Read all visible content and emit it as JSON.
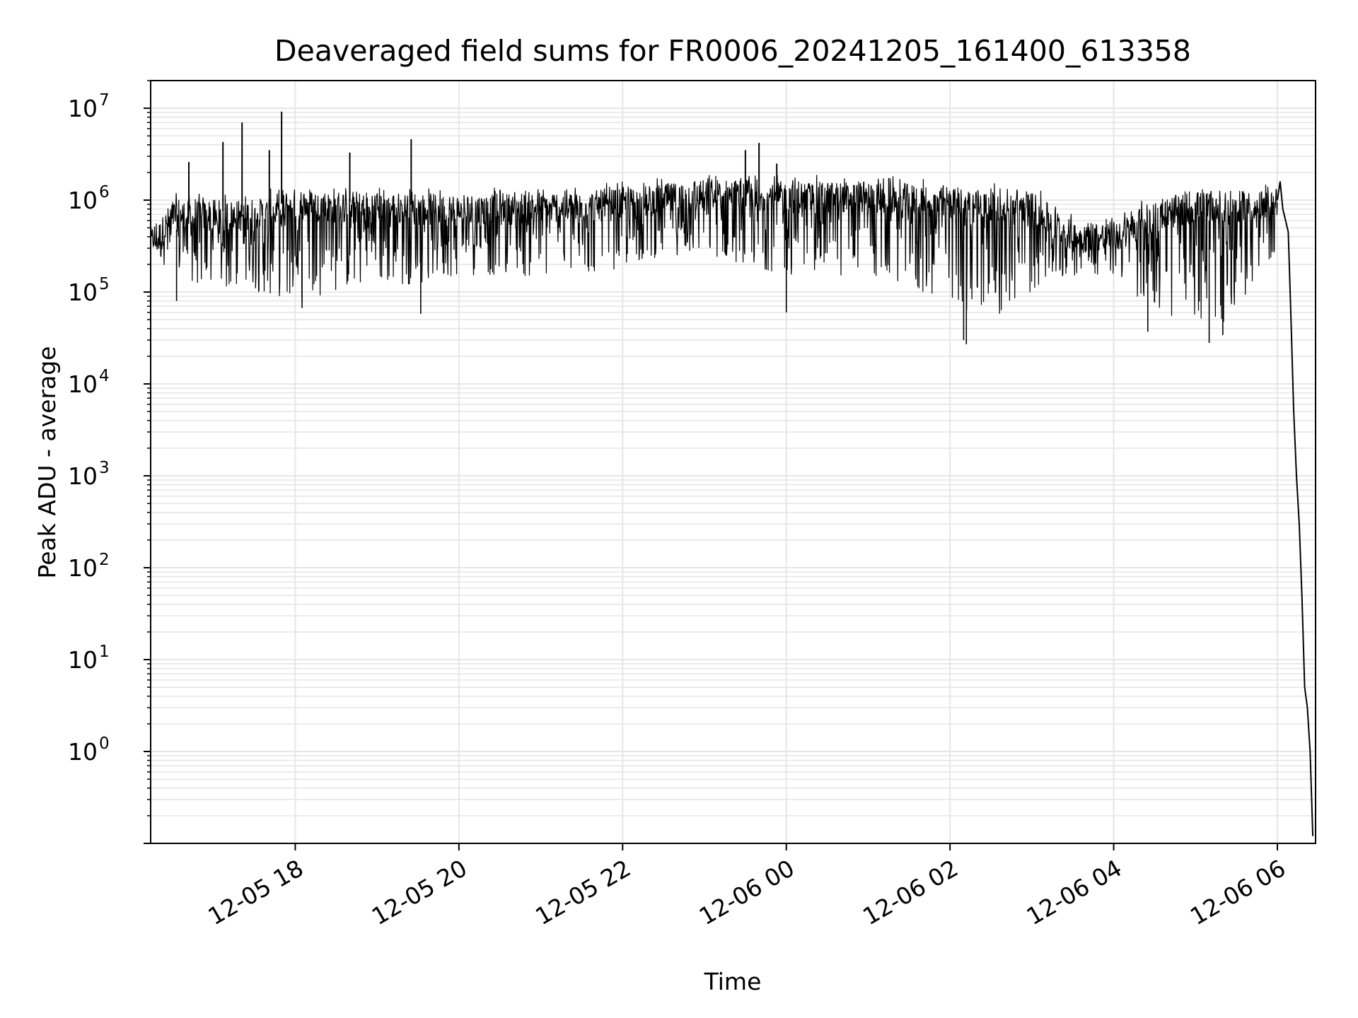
{
  "chart_data": {
    "type": "line",
    "title": "Deaveraged field sums for FR0006_20241205_161400_613358",
    "xlabel": "Time",
    "ylabel": "Peak ADU - average",
    "yscale": "log",
    "ylim": [
      0.1,
      20000000
    ],
    "xlim": [
      "2024-12-05 16:14",
      "2024-12-06 06:28"
    ],
    "grid": true,
    "line_color": "#000000",
    "grid_color": "#e6e6e6",
    "x_ticks": [
      {
        "value": "2024-12-05 18:00",
        "label": "12-05 18"
      },
      {
        "value": "2024-12-05 20:00",
        "label": "12-05 20"
      },
      {
        "value": "2024-12-05 22:00",
        "label": "12-05 22"
      },
      {
        "value": "2024-12-06 00:00",
        "label": "12-06 00"
      },
      {
        "value": "2024-12-06 02:00",
        "label": "12-06 02"
      },
      {
        "value": "2024-12-06 04:00",
        "label": "12-06 04"
      },
      {
        "value": "2024-12-06 06:00",
        "label": "12-06 06"
      }
    ],
    "y_ticks": [
      {
        "value": 1,
        "base": "10",
        "exp": "0"
      },
      {
        "value": 10,
        "base": "10",
        "exp": "1"
      },
      {
        "value": 100,
        "base": "10",
        "exp": "2"
      },
      {
        "value": 1000,
        "base": "10",
        "exp": "3"
      },
      {
        "value": 10000,
        "base": "10",
        "exp": "4"
      },
      {
        "value": 100000,
        "base": "10",
        "exp": "5"
      },
      {
        "value": 1000000,
        "base": "10",
        "exp": "6"
      },
      {
        "value": 10000000,
        "base": "10",
        "exp": "7"
      }
    ],
    "series": [
      {
        "envelope": [
          {
            "x": "2024-12-05 16:14",
            "low": 300000,
            "high": 500000
          },
          {
            "x": "2024-12-05 16:30",
            "low": 150000,
            "high": 1200000
          },
          {
            "x": "2024-12-05 17:00",
            "low": 100000,
            "high": 1200000
          },
          {
            "x": "2024-12-05 17:30",
            "low": 100000,
            "high": 1200000
          },
          {
            "x": "2024-12-05 18:00",
            "low": 80000,
            "high": 1600000
          },
          {
            "x": "2024-12-05 18:30",
            "low": 100000,
            "high": 1500000
          },
          {
            "x": "2024-12-05 19:00",
            "low": 120000,
            "high": 1500000
          },
          {
            "x": "2024-12-05 19:30",
            "low": 120000,
            "high": 1400000
          },
          {
            "x": "2024-12-05 20:00",
            "low": 150000,
            "high": 1400000
          },
          {
            "x": "2024-12-05 20:30",
            "low": 150000,
            "high": 1400000
          },
          {
            "x": "2024-12-05 21:00",
            "low": 140000,
            "high": 1500000
          },
          {
            "x": "2024-12-05 21:30",
            "low": 150000,
            "high": 1500000
          },
          {
            "x": "2024-12-05 22:00",
            "low": 180000,
            "high": 1600000
          },
          {
            "x": "2024-12-05 22:30",
            "low": 250000,
            "high": 1800000
          },
          {
            "x": "2024-12-05 23:00",
            "low": 250000,
            "high": 2000000
          },
          {
            "x": "2024-12-05 23:30",
            "low": 200000,
            "high": 2000000
          },
          {
            "x": "2024-12-06 00:00",
            "low": 150000,
            "high": 1900000
          },
          {
            "x": "2024-12-06 00:30",
            "low": 150000,
            "high": 1900000
          },
          {
            "x": "2024-12-06 01:00",
            "low": 150000,
            "high": 1900000
          },
          {
            "x": "2024-12-06 01:30",
            "low": 100000,
            "high": 1800000
          },
          {
            "x": "2024-12-06 02:00",
            "low": 80000,
            "high": 1600000
          },
          {
            "x": "2024-12-06 02:30",
            "low": 45000,
            "high": 1600000
          },
          {
            "x": "2024-12-06 03:00",
            "low": 100000,
            "high": 1500000
          },
          {
            "x": "2024-12-06 03:30",
            "low": 150000,
            "high": 700000
          },
          {
            "x": "2024-12-06 04:00",
            "low": 150000,
            "high": 700000
          },
          {
            "x": "2024-12-06 04:30",
            "low": 60000,
            "high": 1200000
          },
          {
            "x": "2024-12-06 05:00",
            "low": 40000,
            "high": 1500000
          },
          {
            "x": "2024-12-06 05:30",
            "low": 50000,
            "high": 1500000
          },
          {
            "x": "2024-12-06 06:00",
            "low": 300000,
            "high": 1500000
          }
        ],
        "spikes": [
          {
            "x": "2024-12-05 16:42",
            "y": 2600000
          },
          {
            "x": "2024-12-05 17:07",
            "y": 4300000
          },
          {
            "x": "2024-12-05 17:21",
            "y": 7000000
          },
          {
            "x": "2024-12-05 17:41",
            "y": 3500000
          },
          {
            "x": "2024-12-05 17:50",
            "y": 9200000
          },
          {
            "x": "2024-12-05 18:40",
            "y": 3300000
          },
          {
            "x": "2024-12-05 19:25",
            "y": 4600000
          },
          {
            "x": "2024-12-05 23:30",
            "y": 3500000
          },
          {
            "x": "2024-12-05 23:40",
            "y": 4200000
          },
          {
            "x": "2024-12-05 23:53",
            "y": 2500000
          }
        ],
        "dips": [
          {
            "x": "2024-12-05 16:33",
            "y": 80000
          },
          {
            "x": "2024-12-05 18:05",
            "y": 67000
          },
          {
            "x": "2024-12-05 19:32",
            "y": 58000
          },
          {
            "x": "2024-12-06 00:00",
            "y": 60000
          },
          {
            "x": "2024-12-06 02:10",
            "y": 30000
          },
          {
            "x": "2024-12-06 02:12",
            "y": 27000
          },
          {
            "x": "2024-12-06 04:25",
            "y": 37000
          },
          {
            "x": "2024-12-06 05:10",
            "y": 28000
          },
          {
            "x": "2024-12-06 05:20",
            "y": 34000
          }
        ],
        "tail": [
          {
            "x": "2024-12-06 06:00",
            "y": 1000000
          },
          {
            "x": "2024-12-06 06:02",
            "y": 1600000
          },
          {
            "x": "2024-12-06 06:04",
            "y": 800000
          },
          {
            "x": "2024-12-06 06:06",
            "y": 600000
          },
          {
            "x": "2024-12-06 06:08",
            "y": 450000
          },
          {
            "x": "2024-12-06 06:10",
            "y": 50000
          },
          {
            "x": "2024-12-06 06:12",
            "y": 5000
          },
          {
            "x": "2024-12-06 06:14",
            "y": 1000
          },
          {
            "x": "2024-12-06 06:16",
            "y": 300
          },
          {
            "x": "2024-12-06 06:18",
            "y": 50
          },
          {
            "x": "2024-12-06 06:20",
            "y": 5
          },
          {
            "x": "2024-12-06 06:22",
            "y": 3
          },
          {
            "x": "2024-12-06 06:24",
            "y": 1
          },
          {
            "x": "2024-12-06 06:26",
            "y": 0.12
          }
        ]
      }
    ]
  }
}
